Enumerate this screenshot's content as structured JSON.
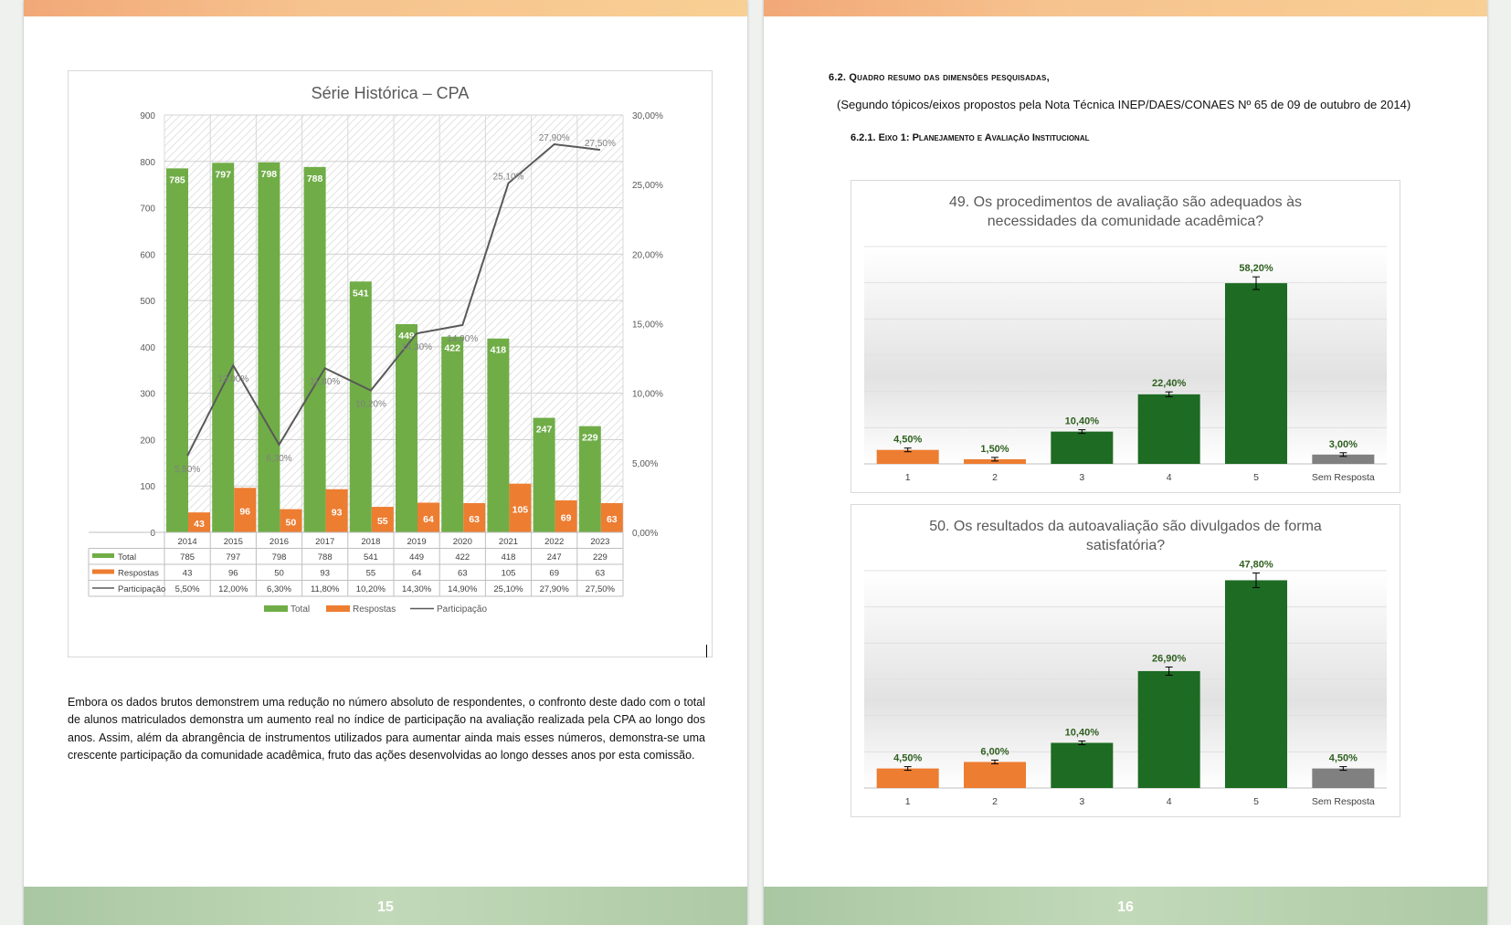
{
  "left_page": {
    "page_number": "15",
    "chart_title": "Série Histórica – CPA",
    "paragraph": "Embora os dados brutos demonstrem uma redução no número absoluto de respondentes, o confronto deste dado com o total de alunos matriculados demonstra um aumento real no índice de participação na avaliação realizada pela CPA ao longo dos anos. Assim, além da abrangência de instrumentos utilizados para aumentar ainda mais esses números, demonstra-se uma crescente participação da comunidade acadêmica, fruto das ações desenvolvidas ao longo desses anos por esta comissão."
  },
  "right_page": {
    "page_number": "16",
    "section_heading": "6.2.  Quadro resumo das dimensões pesquisadas,",
    "section_subheading": "(Segundo tópicos/eixos propostos pela Nota Técnica INEP/DAES/CONAES Nº 65 de 09 de outubro de 2014)",
    "subsection_heading": "6.2.1.    Eixo 1: Planejamento e Avaliação Institucional"
  },
  "colors": {
    "total": "#70ad47",
    "respostas": "#ed7d31",
    "participacao": "#595959",
    "low_bar": "#ed7d31",
    "high_bar": "#1e6b23",
    "no_answer": "#808080",
    "label_green": "#2f5f1f"
  },
  "chart_data": [
    {
      "type": "bar",
      "title": "Série Histórica – CPA",
      "categories": [
        "2014",
        "2015",
        "2016",
        "2017",
        "2018",
        "2019",
        "2020",
        "2021",
        "2022",
        "2023"
      ],
      "series": [
        {
          "name": "Total",
          "axis": "left",
          "values": [
            785,
            797,
            798,
            788,
            541,
            449,
            422,
            418,
            247,
            229
          ],
          "labels": [
            "785",
            "797",
            "798",
            "788",
            "541",
            "449",
            "422",
            "418",
            "247",
            "229"
          ]
        },
        {
          "name": "Respostas",
          "axis": "left",
          "values": [
            43,
            96,
            50,
            93,
            55,
            64,
            63,
            105,
            69,
            63
          ],
          "labels": [
            "43",
            "96",
            "50",
            "93",
            "55",
            "64",
            "63",
            "105",
            "69",
            "63"
          ]
        },
        {
          "name": "Participação",
          "type": "line",
          "axis": "right",
          "values": [
            5.5,
            12.0,
            6.3,
            11.8,
            10.2,
            14.3,
            14.9,
            25.1,
            27.9,
            27.5
          ],
          "labels": [
            "5,50%",
            "12,00%",
            "6,30%",
            "11,80%",
            "10,20%",
            "14,30%",
            "14,90%",
            "25,10%",
            "27,90%",
            "27,50%"
          ]
        }
      ],
      "y_left_ticks": [
        "0",
        "100",
        "200",
        "300",
        "400",
        "500",
        "600",
        "700",
        "800",
        "900"
      ],
      "y_right_ticks": [
        "0,00%",
        "5,00%",
        "10,00%",
        "15,00%",
        "20,00%",
        "25,00%",
        "30,00%"
      ],
      "ylim_left": [
        0,
        900
      ],
      "ylim_right": [
        0,
        30
      ],
      "legend_position": "bottom",
      "data_table": true
    },
    {
      "type": "bar",
      "title": "49. Os procedimentos de avaliação são adequados às necessidades da comunidade acadêmica?",
      "categories": [
        "1",
        "2",
        "3",
        "4",
        "5",
        "Sem Resposta"
      ],
      "values": [
        4.5,
        1.5,
        10.4,
        22.4,
        58.2,
        3.0
      ],
      "labels": [
        "4,50%",
        "1,50%",
        "10,40%",
        "22,40%",
        "58,20%",
        "3,00%"
      ],
      "ylim": [
        0,
        70
      ],
      "error_bars": true
    },
    {
      "type": "bar",
      "title": "50. Os resultados da autoavaliação são divulgados de forma satisfatória?",
      "categories": [
        "1",
        "2",
        "3",
        "4",
        "5",
        "Sem Resposta"
      ],
      "values": [
        4.5,
        6.0,
        10.4,
        26.9,
        47.8,
        4.5
      ],
      "labels": [
        "4,50%",
        "6,00%",
        "10,40%",
        "26,90%",
        "47,80%",
        "4,50%"
      ],
      "ylim": [
        0,
        50
      ],
      "error_bars": true
    }
  ]
}
